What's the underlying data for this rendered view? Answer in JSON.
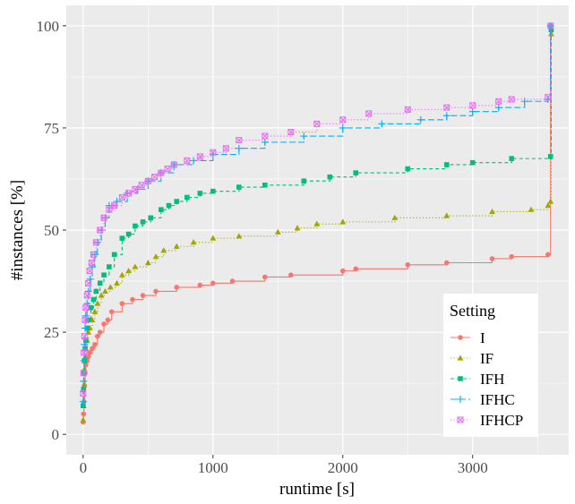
{
  "chart_data": {
    "type": "line",
    "title": "",
    "xlabel": "runtime [s]",
    "ylabel": "#instances [%]",
    "xlim": [
      -130,
      3740
    ],
    "ylim": [
      -5,
      105
    ],
    "xticks": [
      0,
      1000,
      2000,
      3000
    ],
    "yticks": [
      0,
      25,
      50,
      75,
      100
    ],
    "xtick_labels": [
      "0",
      "1000",
      "2000",
      "3000"
    ],
    "ytick_labels": [
      "0",
      "25",
      "50",
      "75",
      "100"
    ],
    "grid": true,
    "legend": {
      "title": "Setting",
      "position": "bottom-right"
    },
    "series": [
      {
        "name": "I",
        "color": "#F8766D",
        "marker": "circle",
        "dash": "solid",
        "points": [
          [
            0,
            3
          ],
          [
            3,
            5
          ],
          [
            6,
            8
          ],
          [
            10,
            12
          ],
          [
            15,
            15
          ],
          [
            20,
            17
          ],
          [
            30,
            18
          ],
          [
            40,
            19
          ],
          [
            50,
            20
          ],
          [
            70,
            21
          ],
          [
            90,
            22
          ],
          [
            110,
            24
          ],
          [
            130,
            25
          ],
          [
            160,
            27
          ],
          [
            190,
            28
          ],
          [
            220,
            30
          ],
          [
            300,
            32
          ],
          [
            380,
            33
          ],
          [
            460,
            34
          ],
          [
            560,
            35
          ],
          [
            720,
            36
          ],
          [
            900,
            36.5
          ],
          [
            1000,
            37
          ],
          [
            1150,
            37.5
          ],
          [
            1400,
            38.5
          ],
          [
            1600,
            39
          ],
          [
            2000,
            40
          ],
          [
            2100,
            40.5
          ],
          [
            2500,
            41.5
          ],
          [
            2800,
            42
          ],
          [
            3150,
            43
          ],
          [
            3300,
            43.5
          ],
          [
            3580,
            44
          ],
          [
            3600,
            100
          ]
        ]
      },
      {
        "name": "IF",
        "color": "#A3A500",
        "marker": "triangle",
        "dash": "dotted",
        "points": [
          [
            0,
            3.5
          ],
          [
            3,
            7
          ],
          [
            6,
            12
          ],
          [
            10,
            16
          ],
          [
            15,
            19
          ],
          [
            20,
            21
          ],
          [
            30,
            23
          ],
          [
            40,
            25
          ],
          [
            50,
            26
          ],
          [
            70,
            28
          ],
          [
            90,
            30
          ],
          [
            110,
            32
          ],
          [
            140,
            34
          ],
          [
            170,
            35
          ],
          [
            210,
            36
          ],
          [
            260,
            37
          ],
          [
            300,
            39
          ],
          [
            350,
            40
          ],
          [
            400,
            41
          ],
          [
            500,
            42
          ],
          [
            560,
            43.5
          ],
          [
            620,
            45
          ],
          [
            720,
            46
          ],
          [
            850,
            47
          ],
          [
            1000,
            48
          ],
          [
            1200,
            48.5
          ],
          [
            1500,
            49.5
          ],
          [
            1650,
            50.5
          ],
          [
            1800,
            51.5
          ],
          [
            2000,
            52
          ],
          [
            2400,
            53
          ],
          [
            2800,
            53.5
          ],
          [
            3150,
            54.5
          ],
          [
            3450,
            55
          ],
          [
            3580,
            56
          ],
          [
            3600,
            57
          ],
          [
            3605,
            98
          ]
        ]
      },
      {
        "name": "IFH",
        "color": "#00BF7D",
        "marker": "square",
        "dash": "dashed",
        "points": [
          [
            0,
            7
          ],
          [
            3,
            11
          ],
          [
            6,
            15
          ],
          [
            10,
            18
          ],
          [
            15,
            21
          ],
          [
            20,
            23
          ],
          [
            30,
            26
          ],
          [
            40,
            28
          ],
          [
            60,
            31
          ],
          [
            80,
            33
          ],
          [
            100,
            35
          ],
          [
            130,
            37
          ],
          [
            160,
            39
          ],
          [
            200,
            41
          ],
          [
            240,
            44
          ],
          [
            300,
            48
          ],
          [
            350,
            49
          ],
          [
            400,
            51
          ],
          [
            460,
            52
          ],
          [
            520,
            53
          ],
          [
            600,
            55
          ],
          [
            660,
            56
          ],
          [
            720,
            57
          ],
          [
            800,
            58
          ],
          [
            900,
            59
          ],
          [
            1000,
            59.5
          ],
          [
            1200,
            60.5
          ],
          [
            1400,
            61
          ],
          [
            1700,
            62
          ],
          [
            1900,
            63
          ],
          [
            2100,
            64
          ],
          [
            2500,
            65
          ],
          [
            2800,
            66
          ],
          [
            3000,
            66.5
          ],
          [
            3300,
            67.5
          ],
          [
            3600,
            68
          ],
          [
            3605,
            99
          ]
        ]
      },
      {
        "name": "IFHC",
        "color": "#00B0F6",
        "marker": "cross",
        "dash": "longdash",
        "points": [
          [
            0,
            8
          ],
          [
            3,
            13
          ],
          [
            6,
            18
          ],
          [
            10,
            22
          ],
          [
            15,
            26
          ],
          [
            20,
            29
          ],
          [
            30,
            32
          ],
          [
            40,
            35
          ],
          [
            55,
            38
          ],
          [
            70,
            41
          ],
          [
            90,
            44
          ],
          [
            110,
            47
          ],
          [
            140,
            50
          ],
          [
            170,
            53
          ],
          [
            200,
            56
          ],
          [
            260,
            57
          ],
          [
            340,
            59
          ],
          [
            420,
            60
          ],
          [
            500,
            62
          ],
          [
            600,
            64
          ],
          [
            700,
            66
          ],
          [
            850,
            67
          ],
          [
            1000,
            68.5
          ],
          [
            1200,
            70
          ],
          [
            1400,
            71.5
          ],
          [
            1700,
            73
          ],
          [
            2000,
            75
          ],
          [
            2300,
            76
          ],
          [
            2600,
            77
          ],
          [
            2800,
            78
          ],
          [
            3000,
            79
          ],
          [
            3200,
            80
          ],
          [
            3400,
            81.5
          ],
          [
            3580,
            82
          ],
          [
            3600,
            100
          ]
        ]
      },
      {
        "name": "IFHCP",
        "color": "#E76BF3",
        "marker": "boxx",
        "dash": "dotted",
        "points": [
          [
            0,
            10
          ],
          [
            3,
            15
          ],
          [
            6,
            20
          ],
          [
            10,
            24
          ],
          [
            15,
            28
          ],
          [
            20,
            31
          ],
          [
            30,
            34
          ],
          [
            40,
            37
          ],
          [
            50,
            40
          ],
          [
            65,
            42
          ],
          [
            80,
            44
          ],
          [
            100,
            47
          ],
          [
            130,
            50
          ],
          [
            160,
            53
          ],
          [
            200,
            55
          ],
          [
            240,
            56
          ],
          [
            300,
            58
          ],
          [
            350,
            59
          ],
          [
            400,
            60
          ],
          [
            450,
            61
          ],
          [
            500,
            62
          ],
          [
            550,
            63
          ],
          [
            600,
            64
          ],
          [
            650,
            65
          ],
          [
            700,
            66
          ],
          [
            800,
            67
          ],
          [
            900,
            68
          ],
          [
            1000,
            69
          ],
          [
            1100,
            70
          ],
          [
            1200,
            72
          ],
          [
            1400,
            73
          ],
          [
            1600,
            74
          ],
          [
            1800,
            76
          ],
          [
            2000,
            77
          ],
          [
            2200,
            78.5
          ],
          [
            2500,
            79.5
          ],
          [
            2800,
            80
          ],
          [
            3000,
            80.5
          ],
          [
            3200,
            81.5
          ],
          [
            3300,
            82
          ],
          [
            3580,
            82.5
          ],
          [
            3600,
            100
          ]
        ]
      }
    ]
  }
}
